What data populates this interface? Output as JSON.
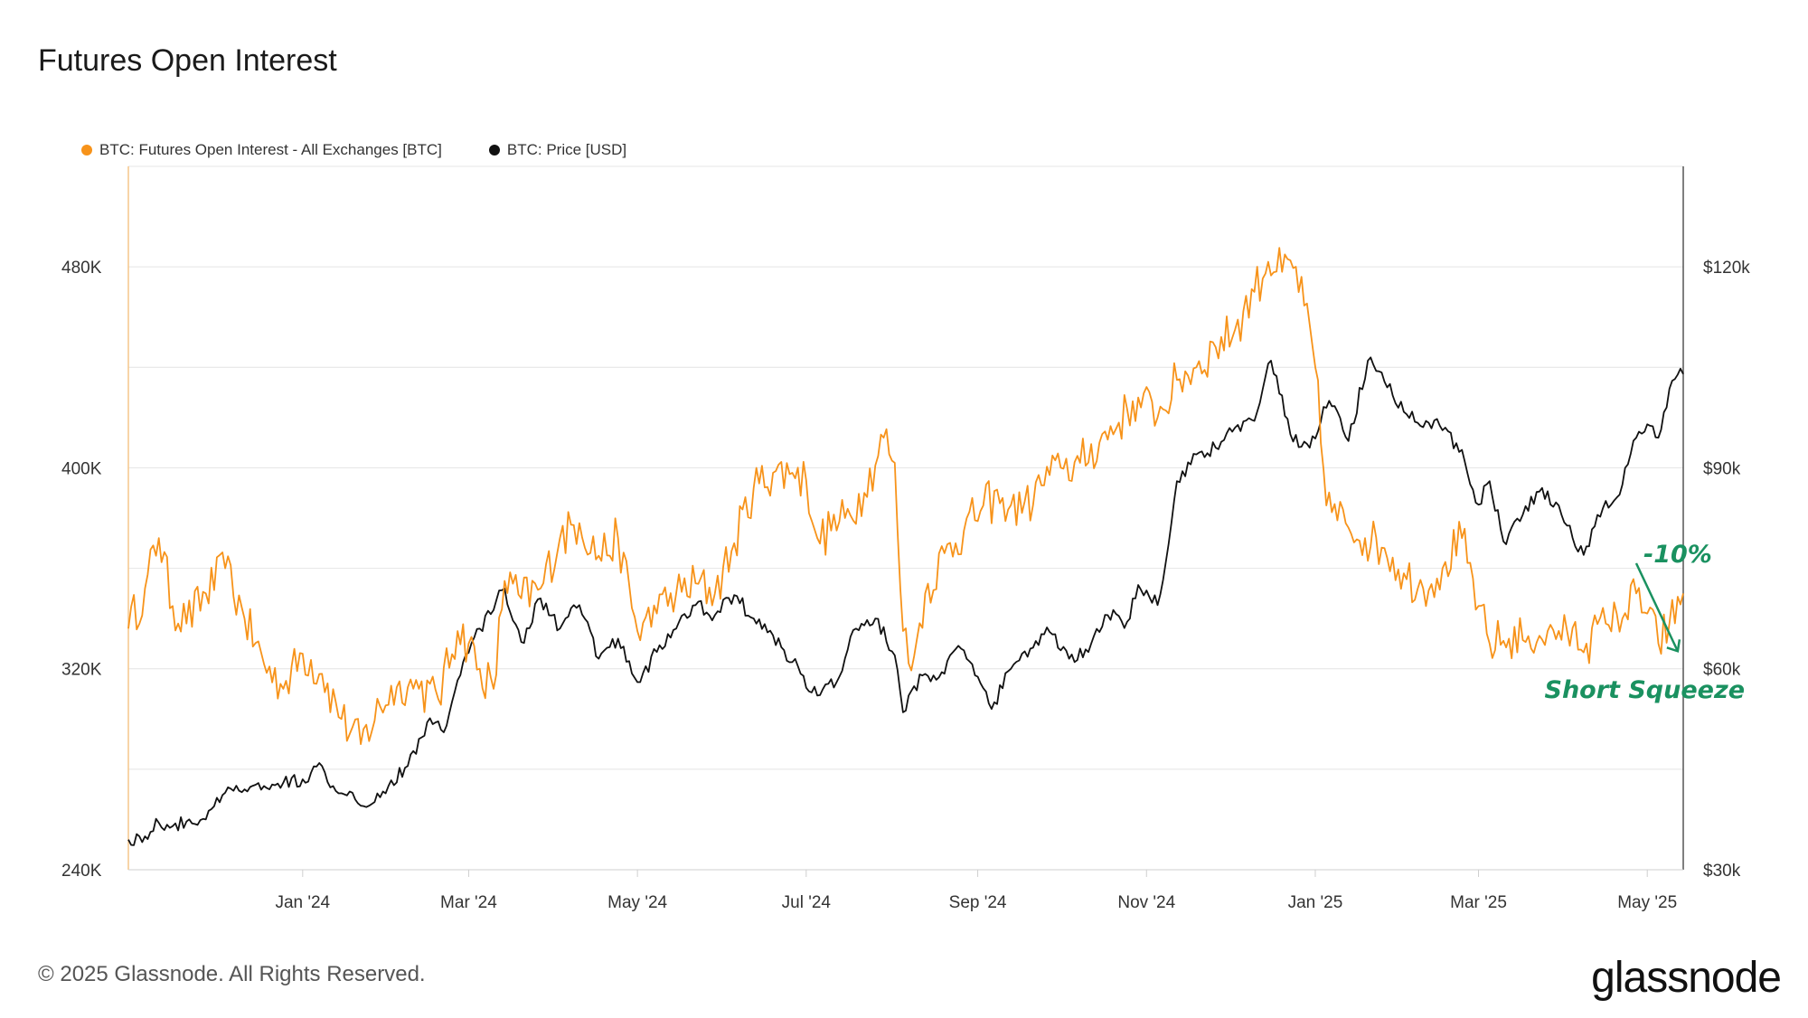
{
  "page": {
    "title": "Futures Open Interest",
    "copyright": "© 2025 Glassnode. All Rights Reserved.",
    "logo_text": "glassnode"
  },
  "chart_data": {
    "type": "line",
    "title": "Futures Open Interest",
    "legend_placement": "top-left",
    "grid": true,
    "x_ticks": [
      "Jan '24",
      "Mar '24",
      "May '24",
      "Jul '24",
      "Sep '24",
      "Nov '24",
      "Jan '25",
      "Mar '25",
      "May '25"
    ],
    "x_tick_dates": [
      "2024-01-01",
      "2024-03-01",
      "2024-05-01",
      "2024-07-01",
      "2024-09-01",
      "2024-11-01",
      "2025-01-01",
      "2025-03-01",
      "2025-05-01"
    ],
    "x_range": [
      "2023-10-30",
      "2025-05-14"
    ],
    "y_left": {
      "ticks": [
        "240K",
        "320K",
        "400K",
        "480K"
      ],
      "tick_values": [
        240000,
        320000,
        400000,
        480000
      ],
      "range": [
        240000,
        520000
      ]
    },
    "y_right": {
      "ticks": [
        "$30k",
        "$60k",
        "$90k",
        "$120k"
      ],
      "tick_values": [
        30000,
        60000,
        90000,
        120000
      ],
      "range": [
        30000,
        135000
      ]
    },
    "series": [
      {
        "name": "BTC: Futures Open Interest - All Exchanges [BTC]",
        "axis": "left",
        "color": "#f7931a",
        "points": [
          [
            "2023-10-30",
            336000
          ],
          [
            "2023-11-05",
            352000
          ],
          [
            "2023-11-10",
            372000
          ],
          [
            "2023-11-15",
            345000
          ],
          [
            "2023-11-20",
            338000
          ],
          [
            "2023-11-27",
            350000
          ],
          [
            "2023-12-04",
            360000
          ],
          [
            "2023-12-11",
            340000
          ],
          [
            "2023-12-18",
            322000
          ],
          [
            "2023-12-25",
            312000
          ],
          [
            "2024-01-01",
            326000
          ],
          [
            "2024-01-08",
            318000
          ],
          [
            "2024-01-15",
            300000
          ],
          [
            "2024-01-22",
            290000
          ],
          [
            "2024-01-29",
            305000
          ],
          [
            "2024-02-05",
            315000
          ],
          [
            "2024-02-12",
            312000
          ],
          [
            "2024-02-19",
            308000
          ],
          [
            "2024-02-26",
            335000
          ],
          [
            "2024-03-01",
            330000
          ],
          [
            "2024-03-05",
            320000
          ],
          [
            "2024-03-10",
            312000
          ],
          [
            "2024-03-14",
            355000
          ],
          [
            "2024-03-20",
            348000
          ],
          [
            "2024-03-27",
            352000
          ],
          [
            "2024-04-03",
            372000
          ],
          [
            "2024-04-10",
            378000
          ],
          [
            "2024-04-17",
            365000
          ],
          [
            "2024-04-24",
            372000
          ],
          [
            "2024-05-01",
            335000
          ],
          [
            "2024-05-08",
            342000
          ],
          [
            "2024-05-15",
            350000
          ],
          [
            "2024-05-22",
            354000
          ],
          [
            "2024-05-29",
            350000
          ],
          [
            "2024-06-05",
            370000
          ],
          [
            "2024-06-12",
            392000
          ],
          [
            "2024-06-19",
            398000
          ],
          [
            "2024-06-26",
            398000
          ],
          [
            "2024-07-01",
            395000
          ],
          [
            "2024-07-05",
            372000
          ],
          [
            "2024-07-10",
            375000
          ],
          [
            "2024-07-15",
            380000
          ],
          [
            "2024-07-22",
            390000
          ],
          [
            "2024-07-29",
            412000
          ],
          [
            "2024-08-02",
            402000
          ],
          [
            "2024-08-05",
            335000
          ],
          [
            "2024-08-09",
            325000
          ],
          [
            "2024-08-13",
            350000
          ],
          [
            "2024-08-20",
            366000
          ],
          [
            "2024-08-27",
            375000
          ],
          [
            "2024-09-03",
            385000
          ],
          [
            "2024-09-10",
            388000
          ],
          [
            "2024-09-17",
            382000
          ],
          [
            "2024-09-24",
            393000
          ],
          [
            "2024-10-01",
            400000
          ],
          [
            "2024-10-08",
            402000
          ],
          [
            "2024-10-15",
            410000
          ],
          [
            "2024-10-22",
            418000
          ],
          [
            "2024-10-29",
            428000
          ],
          [
            "2024-11-05",
            420000
          ],
          [
            "2024-11-12",
            435000
          ],
          [
            "2024-11-19",
            440000
          ],
          [
            "2024-11-26",
            448000
          ],
          [
            "2024-12-03",
            455000
          ],
          [
            "2024-12-10",
            470000
          ],
          [
            "2024-12-15",
            482000
          ],
          [
            "2024-12-20",
            478000
          ],
          [
            "2024-12-25",
            480000
          ],
          [
            "2025-01-01",
            440000
          ],
          [
            "2025-01-05",
            385000
          ],
          [
            "2025-01-12",
            378000
          ],
          [
            "2025-01-19",
            372000
          ],
          [
            "2025-01-26",
            368000
          ],
          [
            "2025-02-02",
            358000
          ],
          [
            "2025-02-09",
            352000
          ],
          [
            "2025-02-16",
            360000
          ],
          [
            "2025-02-23",
            372000
          ],
          [
            "2025-03-01",
            345000
          ],
          [
            "2025-03-05",
            330000
          ],
          [
            "2025-03-12",
            332000
          ],
          [
            "2025-03-19",
            333000
          ],
          [
            "2025-03-26",
            335000
          ],
          [
            "2025-04-02",
            335000
          ],
          [
            "2025-04-09",
            330000
          ],
          [
            "2025-04-16",
            338000
          ],
          [
            "2025-04-22",
            340000
          ],
          [
            "2025-04-27",
            350000
          ],
          [
            "2025-05-01",
            342000
          ],
          [
            "2025-05-05",
            330000
          ],
          [
            "2025-05-09",
            338000
          ],
          [
            "2025-05-14",
            350000
          ]
        ]
      },
      {
        "name": "BTC: Price [USD]",
        "axis": "right",
        "color": "#111111",
        "points": [
          [
            "2023-10-30",
            34500
          ],
          [
            "2023-11-05",
            35000
          ],
          [
            "2023-11-10",
            37000
          ],
          [
            "2023-11-15",
            36500
          ],
          [
            "2023-11-20",
            37200
          ],
          [
            "2023-11-27",
            37500
          ],
          [
            "2023-12-04",
            41500
          ],
          [
            "2023-12-11",
            42000
          ],
          [
            "2023-12-18",
            42500
          ],
          [
            "2023-12-25",
            43000
          ],
          [
            "2024-01-01",
            43500
          ],
          [
            "2024-01-08",
            45500
          ],
          [
            "2024-01-12",
            42500
          ],
          [
            "2024-01-19",
            41500
          ],
          [
            "2024-01-23",
            39500
          ],
          [
            "2024-02-01",
            42500
          ],
          [
            "2024-02-08",
            45500
          ],
          [
            "2024-02-15",
            52000
          ],
          [
            "2024-02-22",
            51500
          ],
          [
            "2024-02-28",
            61000
          ],
          [
            "2024-03-05",
            66000
          ],
          [
            "2024-03-14",
            72000
          ],
          [
            "2024-03-20",
            64000
          ],
          [
            "2024-03-27",
            70500
          ],
          [
            "2024-04-03",
            66000
          ],
          [
            "2024-04-10",
            69500
          ],
          [
            "2024-04-17",
            61500
          ],
          [
            "2024-04-24",
            64500
          ],
          [
            "2024-05-01",
            58000
          ],
          [
            "2024-05-08",
            62500
          ],
          [
            "2024-05-15",
            66000
          ],
          [
            "2024-05-22",
            69500
          ],
          [
            "2024-05-29",
            68000
          ],
          [
            "2024-06-05",
            71000
          ],
          [
            "2024-06-12",
            67500
          ],
          [
            "2024-06-19",
            65000
          ],
          [
            "2024-06-26",
            61000
          ],
          [
            "2024-07-05",
            56000
          ],
          [
            "2024-07-12",
            58000
          ],
          [
            "2024-07-19",
            66000
          ],
          [
            "2024-07-26",
            67500
          ],
          [
            "2024-08-02",
            62000
          ],
          [
            "2024-08-05",
            53500
          ],
          [
            "2024-08-12",
            59000
          ],
          [
            "2024-08-19",
            59500
          ],
          [
            "2024-08-26",
            63000
          ],
          [
            "2024-09-06",
            54000
          ],
          [
            "2024-09-13",
            60000
          ],
          [
            "2024-09-20",
            63000
          ],
          [
            "2024-09-27",
            65500
          ],
          [
            "2024-10-04",
            61500
          ],
          [
            "2024-10-11",
            62500
          ],
          [
            "2024-10-18",
            68000
          ],
          [
            "2024-10-25",
            67000
          ],
          [
            "2024-10-29",
            72500
          ],
          [
            "2024-11-05",
            69500
          ],
          [
            "2024-11-08",
            76000
          ],
          [
            "2024-11-12",
            88000
          ],
          [
            "2024-11-19",
            92000
          ],
          [
            "2024-11-26",
            93000
          ],
          [
            "2024-12-03",
            96000
          ],
          [
            "2024-12-10",
            97000
          ],
          [
            "2024-12-16",
            106000
          ],
          [
            "2024-12-23",
            95000
          ],
          [
            "2024-12-30",
            93000
          ],
          [
            "2025-01-06",
            100000
          ],
          [
            "2025-01-13",
            94000
          ],
          [
            "2025-01-20",
            106000
          ],
          [
            "2025-01-27",
            102000
          ],
          [
            "2025-02-03",
            98000
          ],
          [
            "2025-02-10",
            97000
          ],
          [
            "2025-02-17",
            96000
          ],
          [
            "2025-02-24",
            91000
          ],
          [
            "2025-03-01",
            84500
          ],
          [
            "2025-03-05",
            88000
          ],
          [
            "2025-03-10",
            79000
          ],
          [
            "2025-03-17",
            83000
          ],
          [
            "2025-03-24",
            87000
          ],
          [
            "2025-03-31",
            83000
          ],
          [
            "2025-04-08",
            77000
          ],
          [
            "2025-04-15",
            84000
          ],
          [
            "2025-04-22",
            87500
          ],
          [
            "2025-04-27",
            94500
          ],
          [
            "2025-05-01",
            96500
          ],
          [
            "2025-05-05",
            94500
          ],
          [
            "2025-05-08",
            99000
          ],
          [
            "2025-05-10",
            103000
          ],
          [
            "2025-05-14",
            104000
          ]
        ]
      }
    ],
    "annotations": [
      {
        "text": "-10%",
        "color": "#1a9160"
      },
      {
        "text": "Short Squeeze",
        "color": "#1a9160"
      }
    ]
  }
}
